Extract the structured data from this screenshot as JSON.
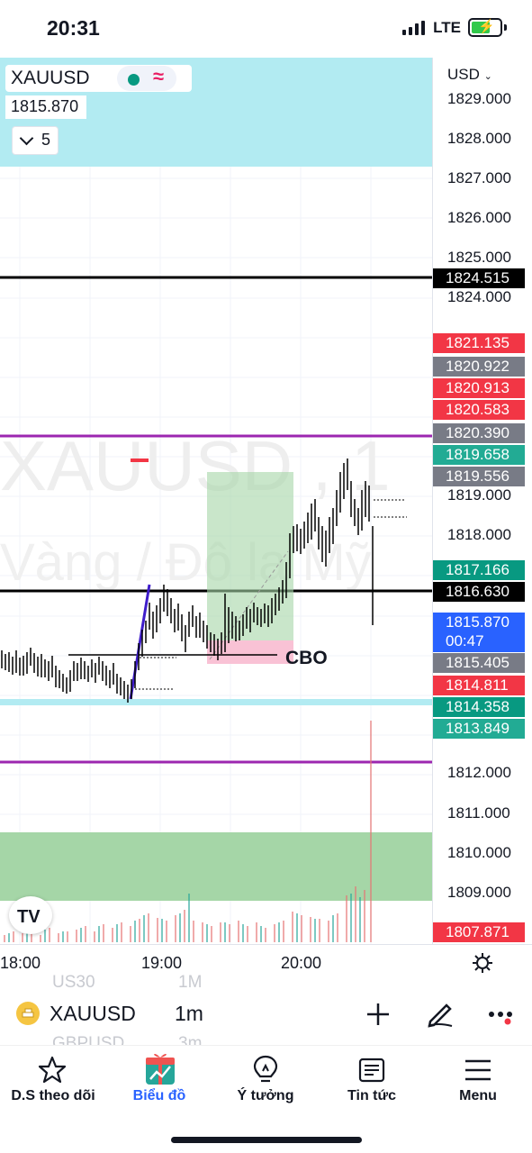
{
  "status_bar": {
    "time": "20:31",
    "network": "LTE",
    "icons": [
      "signal-icon",
      "battery-charging-icon"
    ]
  },
  "chart": {
    "symbol": "XAUUSD",
    "last_price": "1815.870",
    "indicators_count": "5",
    "currency": "USD",
    "watermark_symbol": "XAUUSD , 1",
    "watermark_desc": "Vàng / Đô la Mỹ",
    "annotation": "CBO"
  },
  "price_axis": {
    "labels": [
      "1829.000",
      "1828.000",
      "1827.000",
      "1826.000",
      "1825.000",
      "1824.000",
      "1819.000",
      "1818.000",
      "1812.000",
      "1811.000",
      "1810.000",
      "1809.000"
    ],
    "tags": [
      {
        "text": "1824.515",
        "color": "#000000"
      },
      {
        "text": "1821.135",
        "color": "#f23645"
      },
      {
        "text": "1820.922",
        "color": "#787b86"
      },
      {
        "text": "1820.913",
        "color": "#f23645"
      },
      {
        "text": "1820.583",
        "color": "#f23645"
      },
      {
        "text": "1820.390",
        "color": "#787b86"
      },
      {
        "text": "1819.658",
        "color": "#22ab94"
      },
      {
        "text": "1819.556",
        "color": "#787b86"
      },
      {
        "text": "1817.166",
        "color": "#089981"
      },
      {
        "text": "1816.630",
        "color": "#000000"
      },
      {
        "text": "1815.870",
        "color": "#2962ff",
        "sub": "00:47"
      },
      {
        "text": "1815.405",
        "color": "#787b86"
      },
      {
        "text": "1814.811",
        "color": "#f23645"
      },
      {
        "text": "1814.358",
        "color": "#089981"
      },
      {
        "text": "1813.849",
        "color": "#22ab94"
      },
      {
        "text": "1807.871",
        "color": "#f23645"
      }
    ]
  },
  "time_axis": {
    "labels": [
      "18:00",
      "19:00",
      "20:00"
    ]
  },
  "toolbar": {
    "symbol": "XAUUSD",
    "interval": "1m",
    "ghost_1": "US30",
    "ghost_1b": "1M",
    "ghost_2": "GBPUSD",
    "ghost_2b": "3m"
  },
  "bottom_nav": {
    "items": [
      {
        "label": "D.S theo dõi",
        "icon": "star-icon"
      },
      {
        "label": "Biểu đồ",
        "icon": "chart-gift-icon"
      },
      {
        "label": "Ý tưởng",
        "icon": "lightbulb-icon"
      },
      {
        "label": "Tin tức",
        "icon": "news-icon"
      },
      {
        "label": "Menu",
        "icon": "hamburger-icon"
      }
    ]
  },
  "colors": {
    "accent": "#2962ff",
    "up": "#089981",
    "down": "#f23645",
    "cyan_zone": "#b2ebf2",
    "green_zone": "#a5d6a7",
    "purple_line": "#9c27b0"
  }
}
